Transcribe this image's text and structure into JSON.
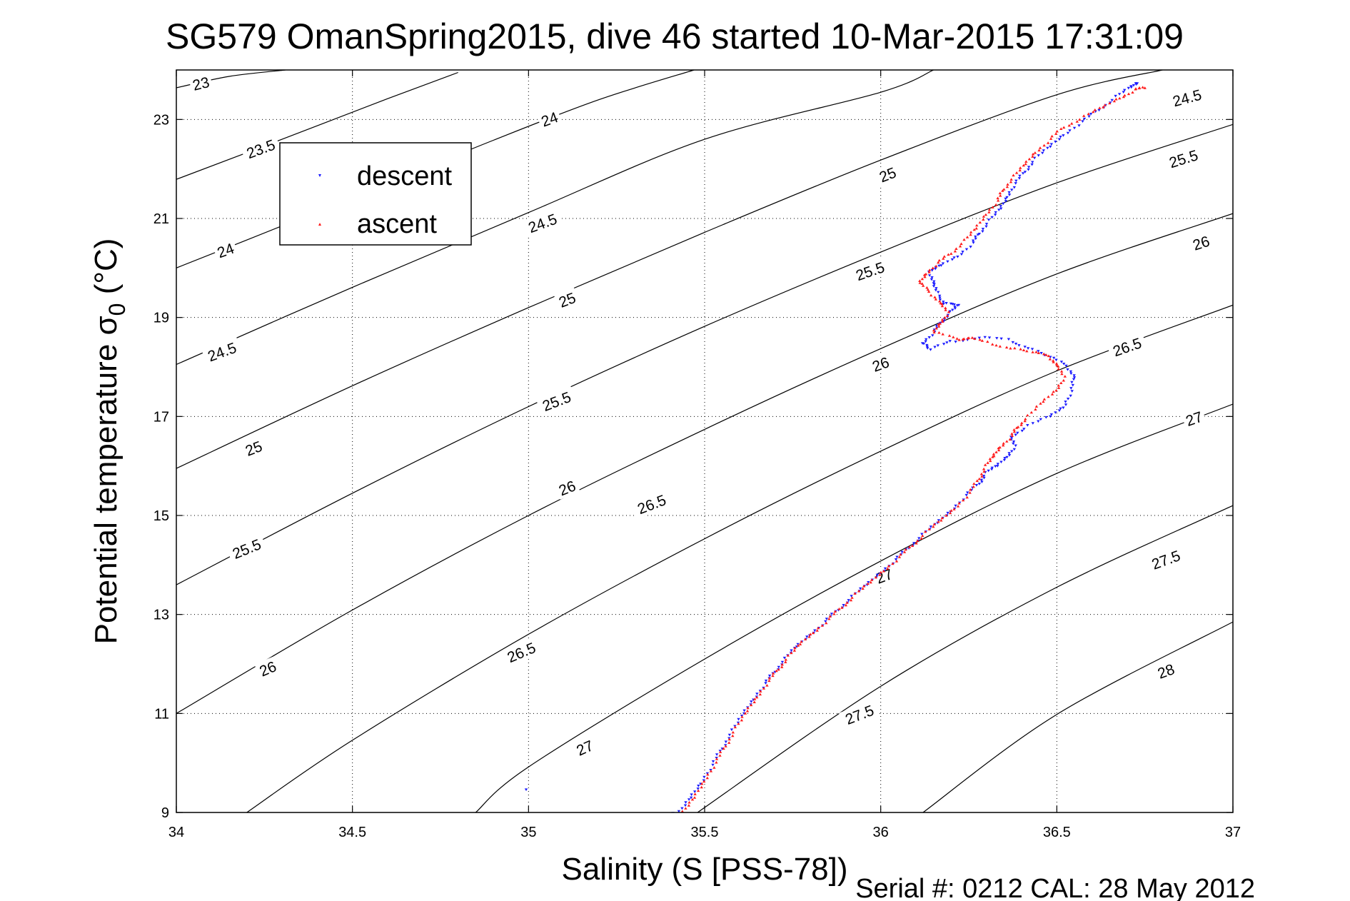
{
  "chart_data": {
    "type": "scatter",
    "title": "SG579 OmanSpring2015, dive 46 started 10-Mar-2015 17:31:09",
    "xlabel": "Salinity (S [PSS-78])",
    "ylabel_prefix": "Potential temperature σ",
    "ylabel_sub": "0",
    "ylabel_suffix": " (°C)",
    "xlim": [
      34,
      37
    ],
    "ylim": [
      9,
      24
    ],
    "x_ticks": [
      "34",
      "34.5",
      "35",
      "35.5",
      "36",
      "36.5",
      "37"
    ],
    "y_ticks": [
      "9",
      "11",
      "13",
      "15",
      "17",
      "19",
      "21",
      "23"
    ],
    "grid": true,
    "legend": {
      "placement": "top-left",
      "entries": [
        "descent",
        "ascent"
      ]
    },
    "footer": "Serial #: 0212  CAL: 28 May 2012",
    "colors": {
      "descent": "#1a1aff",
      "ascent": "#ff1a1a",
      "contour": "#000000"
    },
    "contours": [
      {
        "level": 23,
        "label": "23",
        "points": [
          [
            34.0,
            23.64
          ],
          [
            34.15,
            23.87
          ],
          [
            34.31,
            24.0
          ]
        ]
      },
      {
        "level": 23.5,
        "label": "23.5",
        "points": [
          [
            34.0,
            21.79
          ],
          [
            34.3,
            22.6
          ],
          [
            34.6,
            23.42
          ],
          [
            34.8,
            23.95
          ]
        ]
      },
      {
        "level": 24,
        "label": "24",
        "points": [
          [
            34.0,
            20.0
          ],
          [
            34.3,
            20.85
          ],
          [
            34.6,
            21.71
          ],
          [
            34.9,
            22.58
          ],
          [
            35.2,
            23.4
          ],
          [
            35.47,
            24.0
          ]
        ]
      },
      {
        "level": 24.5,
        "label": "24.5",
        "points": [
          [
            34.0,
            18.05
          ],
          [
            34.5,
            19.61
          ],
          [
            35.0,
            21.12
          ],
          [
            35.5,
            22.6
          ],
          [
            36.0,
            23.55
          ],
          [
            36.15,
            24.0
          ]
        ]
      },
      {
        "level": 25,
        "label": "25",
        "points": [
          [
            34.0,
            15.95
          ],
          [
            34.5,
            17.62
          ],
          [
            35.0,
            19.2
          ],
          [
            35.5,
            20.72
          ],
          [
            36.0,
            22.18
          ],
          [
            36.5,
            23.5
          ],
          [
            36.8,
            24.0
          ]
        ]
      },
      {
        "level": 25.5,
        "label": "25.5",
        "points": [
          [
            34.0,
            13.6
          ],
          [
            34.5,
            15.45
          ],
          [
            35.0,
            17.2
          ],
          [
            35.5,
            18.82
          ],
          [
            36.0,
            20.32
          ],
          [
            36.5,
            21.72
          ],
          [
            37.0,
            22.9
          ]
        ]
      },
      {
        "level": 26,
        "label": "26",
        "points": [
          [
            34.0,
            11.0
          ],
          [
            34.5,
            13.09
          ],
          [
            35.0,
            15.0
          ],
          [
            35.5,
            16.74
          ],
          [
            36.0,
            18.37
          ],
          [
            36.5,
            19.88
          ],
          [
            37.0,
            21.1
          ]
        ]
      },
      {
        "level": 26.5,
        "label": "26.5",
        "points": [
          [
            34.2,
            9.0
          ],
          [
            34.5,
            10.46
          ],
          [
            35.0,
            12.6
          ],
          [
            35.5,
            14.53
          ],
          [
            36.0,
            16.3
          ],
          [
            36.5,
            17.92
          ],
          [
            37.0,
            19.25
          ]
        ]
      },
      {
        "level": 27,
        "label": "27",
        "points": [
          [
            34.85,
            9.0
          ],
          [
            35.0,
            9.92
          ],
          [
            35.5,
            12.1
          ],
          [
            36.0,
            14.08
          ],
          [
            36.5,
            15.85
          ],
          [
            37.0,
            17.25
          ]
        ]
      },
      {
        "level": 27.5,
        "label": "27.5",
        "points": [
          [
            35.48,
            9.0
          ],
          [
            36.0,
            11.55
          ],
          [
            36.5,
            13.55
          ],
          [
            37.0,
            15.2
          ]
        ]
      },
      {
        "level": 28,
        "label": "28",
        "points": [
          [
            36.12,
            9.0
          ],
          [
            36.5,
            10.98
          ],
          [
            37.0,
            12.85
          ]
        ]
      }
    ],
    "contour_labels": [
      {
        "text": "23",
        "x": 34.07,
        "y": 23.72,
        "angle": -14
      },
      {
        "text": "23.5",
        "x": 34.24,
        "y": 22.4,
        "angle": -20
      },
      {
        "text": "24",
        "x": 35.06,
        "y": 23.0,
        "angle": -20
      },
      {
        "text": "24",
        "x": 34.14,
        "y": 20.35,
        "angle": -20
      },
      {
        "text": "24.5",
        "x": 35.04,
        "y": 20.9,
        "angle": -20
      },
      {
        "text": "24.5",
        "x": 36.87,
        "y": 23.43,
        "angle": -15
      },
      {
        "text": "24.5",
        "x": 34.13,
        "y": 18.3,
        "angle": -20
      },
      {
        "text": "25",
        "x": 35.11,
        "y": 19.35,
        "angle": -21
      },
      {
        "text": "25",
        "x": 36.02,
        "y": 21.88,
        "angle": -21
      },
      {
        "text": "25",
        "x": 34.22,
        "y": 16.35,
        "angle": -21
      },
      {
        "text": "25.5",
        "x": 36.86,
        "y": 22.2,
        "angle": -17
      },
      {
        "text": "25.5",
        "x": 35.08,
        "y": 17.3,
        "angle": -21
      },
      {
        "text": "25.5",
        "x": 34.2,
        "y": 14.32,
        "angle": -22
      },
      {
        "text": "25.5",
        "x": 35.97,
        "y": 19.93,
        "angle": -19
      },
      {
        "text": "26",
        "x": 36.91,
        "y": 20.5,
        "angle": -18
      },
      {
        "text": "26",
        "x": 35.11,
        "y": 15.55,
        "angle": -22
      },
      {
        "text": "26",
        "x": 34.26,
        "y": 11.9,
        "angle": -23
      },
      {
        "text": "26",
        "x": 36.0,
        "y": 18.05,
        "angle": -20
      },
      {
        "text": "26.5",
        "x": 36.7,
        "y": 18.4,
        "angle": -19
      },
      {
        "text": "26.5",
        "x": 35.35,
        "y": 15.22,
        "angle": -21
      },
      {
        "text": "26.5",
        "x": 34.98,
        "y": 12.23,
        "angle": -23
      },
      {
        "text": "27",
        "x": 36.89,
        "y": 16.95,
        "angle": -19
      },
      {
        "text": "27",
        "x": 36.01,
        "y": 13.77,
        "angle": -21
      },
      {
        "text": "27",
        "x": 35.16,
        "y": 10.3,
        "angle": -24
      },
      {
        "text": "27.5",
        "x": 36.81,
        "y": 14.1,
        "angle": -20
      },
      {
        "text": "27.5",
        "x": 35.94,
        "y": 10.97,
        "angle": -21
      },
      {
        "text": "28",
        "x": 36.81,
        "y": 11.85,
        "angle": -20
      }
    ],
    "series": [
      {
        "name": "descent",
        "marker": "triangle-down",
        "points": [
          [
            35.43,
            9.0
          ],
          [
            35.46,
            9.3
          ],
          [
            35.49,
            9.6
          ],
          [
            35.52,
            9.95
          ],
          [
            35.55,
            10.3
          ],
          [
            35.58,
            10.65
          ],
          [
            35.61,
            11.0
          ],
          [
            35.64,
            11.3
          ],
          [
            35.67,
            11.6
          ],
          [
            35.7,
            11.85
          ],
          [
            35.73,
            12.1
          ],
          [
            35.76,
            12.35
          ],
          [
            35.8,
            12.6
          ],
          [
            35.84,
            12.85
          ],
          [
            35.88,
            13.1
          ],
          [
            35.92,
            13.35
          ],
          [
            35.96,
            13.6
          ],
          [
            36.0,
            13.85
          ],
          [
            36.04,
            14.1
          ],
          [
            36.08,
            14.35
          ],
          [
            36.12,
            14.6
          ],
          [
            36.16,
            14.85
          ],
          [
            36.2,
            15.1
          ],
          [
            36.24,
            15.4
          ],
          [
            36.28,
            15.65
          ],
          [
            36.3,
            15.85
          ],
          [
            36.33,
            16.0
          ],
          [
            36.36,
            16.2
          ],
          [
            36.38,
            16.4
          ],
          [
            36.37,
            16.6
          ],
          [
            36.42,
            16.8
          ],
          [
            36.48,
            17.0
          ],
          [
            36.52,
            17.2
          ],
          [
            36.54,
            17.5
          ],
          [
            36.55,
            17.8
          ],
          [
            36.53,
            18.0
          ],
          [
            36.48,
            18.2
          ],
          [
            36.42,
            18.4
          ],
          [
            36.36,
            18.55
          ],
          [
            36.28,
            18.6
          ],
          [
            36.2,
            18.5
          ],
          [
            36.14,
            18.35
          ],
          [
            36.12,
            18.5
          ],
          [
            36.15,
            18.7
          ],
          [
            36.17,
            18.9
          ],
          [
            36.2,
            19.1
          ],
          [
            36.22,
            19.25
          ],
          [
            36.18,
            19.3
          ],
          [
            36.16,
            19.5
          ],
          [
            36.15,
            19.7
          ],
          [
            36.14,
            19.9
          ],
          [
            36.17,
            20.05
          ],
          [
            36.22,
            20.25
          ],
          [
            36.26,
            20.5
          ],
          [
            36.28,
            20.7
          ],
          [
            36.31,
            20.95
          ],
          [
            36.34,
            21.2
          ],
          [
            36.36,
            21.45
          ],
          [
            36.38,
            21.7
          ],
          [
            36.41,
            21.95
          ],
          [
            36.44,
            22.2
          ],
          [
            36.48,
            22.45
          ],
          [
            36.52,
            22.7
          ],
          [
            36.57,
            22.95
          ],
          [
            36.62,
            23.2
          ],
          [
            36.67,
            23.45
          ],
          [
            36.71,
            23.65
          ],
          [
            36.73,
            23.75
          ],
          [
            34.99,
            9.45
          ],
          [
            35.41,
            9.0
          ]
        ]
      },
      {
        "name": "ascent",
        "marker": "triangle-up",
        "points": [
          [
            35.44,
            9.0
          ],
          [
            35.47,
            9.3
          ],
          [
            35.5,
            9.65
          ],
          [
            35.53,
            10.0
          ],
          [
            35.56,
            10.35
          ],
          [
            35.59,
            10.7
          ],
          [
            35.62,
            11.05
          ],
          [
            35.65,
            11.35
          ],
          [
            35.68,
            11.65
          ],
          [
            35.71,
            11.9
          ],
          [
            35.74,
            12.15
          ],
          [
            35.77,
            12.4
          ],
          [
            35.81,
            12.65
          ],
          [
            35.85,
            12.9
          ],
          [
            35.89,
            13.15
          ],
          [
            35.93,
            13.4
          ],
          [
            35.97,
            13.65
          ],
          [
            36.01,
            13.9
          ],
          [
            36.05,
            14.15
          ],
          [
            36.09,
            14.4
          ],
          [
            36.13,
            14.65
          ],
          [
            36.17,
            14.9
          ],
          [
            36.21,
            15.15
          ],
          [
            36.25,
            15.45
          ],
          [
            36.28,
            15.75
          ],
          [
            36.3,
            16.0
          ],
          [
            36.32,
            16.2
          ],
          [
            36.34,
            16.4
          ],
          [
            36.37,
            16.6
          ],
          [
            36.39,
            16.8
          ],
          [
            36.42,
            17.0
          ],
          [
            36.46,
            17.3
          ],
          [
            36.5,
            17.55
          ],
          [
            36.52,
            17.8
          ],
          [
            36.5,
            18.05
          ],
          [
            36.48,
            18.2
          ],
          [
            36.43,
            18.3
          ],
          [
            36.37,
            18.4
          ],
          [
            36.3,
            18.5
          ],
          [
            36.25,
            18.6
          ],
          [
            36.22,
            18.55
          ],
          [
            36.15,
            18.7
          ],
          [
            36.17,
            18.9
          ],
          [
            36.19,
            19.1
          ],
          [
            36.17,
            19.3
          ],
          [
            36.14,
            19.5
          ],
          [
            36.11,
            19.7
          ],
          [
            36.13,
            19.9
          ],
          [
            36.16,
            20.1
          ],
          [
            36.2,
            20.3
          ],
          [
            36.24,
            20.55
          ],
          [
            36.27,
            20.8
          ],
          [
            36.3,
            21.1
          ],
          [
            36.33,
            21.35
          ],
          [
            36.35,
            21.6
          ],
          [
            36.38,
            21.85
          ],
          [
            36.41,
            22.1
          ],
          [
            36.44,
            22.35
          ],
          [
            36.48,
            22.6
          ],
          [
            36.52,
            22.85
          ],
          [
            36.58,
            23.05
          ],
          [
            36.63,
            23.25
          ],
          [
            36.68,
            23.45
          ],
          [
            36.72,
            23.6
          ],
          [
            36.75,
            23.65
          ]
        ]
      }
    ]
  }
}
